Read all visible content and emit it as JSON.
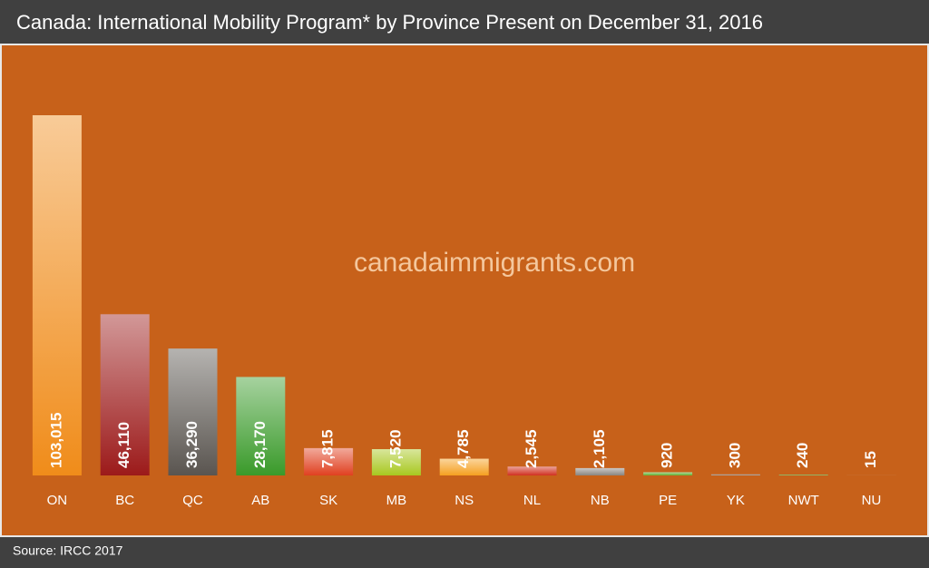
{
  "chart_data": {
    "type": "bar",
    "title": "Canada: International Mobility Program* by Province Present on December 31, 2016",
    "watermark": "canadaimmigrants.com",
    "source": "Source: IRCC 2017",
    "categories": [
      "ON",
      "BC",
      "QC",
      "AB",
      "SK",
      "MB",
      "NS",
      "NL",
      "NB",
      "PE",
      "YK",
      "NWT",
      "NU"
    ],
    "values": [
      103015,
      46110,
      36290,
      28170,
      7815,
      7520,
      4785,
      2545,
      2105,
      920,
      300,
      240,
      15
    ],
    "value_labels": [
      "103,015",
      "46,110",
      "36,290",
      "28,170",
      "7,815",
      "7,520",
      "4,785",
      "2,545",
      "2,105",
      "920",
      "300",
      "240",
      "15"
    ],
    "colors": [
      "#f08c1a",
      "#9c1a1a",
      "#5a5550",
      "#3a9a2a",
      "#e04020",
      "#a8c820",
      "#f5a020",
      "#d03020",
      "#8a8580",
      "#60b030",
      "#8a8580",
      "#60a030",
      "#8a8580"
    ]
  }
}
